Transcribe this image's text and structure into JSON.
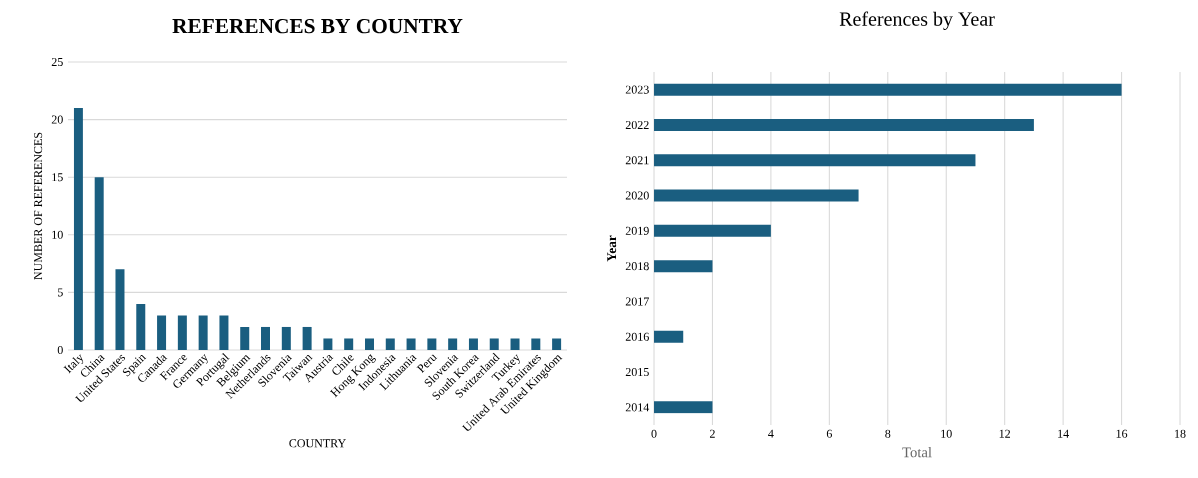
{
  "chart_data": [
    {
      "type": "bar",
      "title": "REFERENCES BY COUNTRY",
      "xlabel": "COUNTRY",
      "ylabel": "NUMBER OF REFERENCES",
      "categories": [
        "Italy",
        "China",
        "United States",
        "Spain",
        "Canada",
        "France",
        "Germany",
        "Portugal",
        "Belgium",
        "Netherlands",
        "Slovenia",
        "Taiwan",
        "Austria",
        "Chile",
        "Hong Kong",
        "Indonesia",
        "Lithuania",
        "Peru",
        "Slovenia",
        "South Korea",
        "Switzerland",
        "Turkey",
        "United Arab Emirates",
        "United Kingdom"
      ],
      "values": [
        21,
        15,
        7,
        4,
        3,
        3,
        3,
        3,
        2,
        2,
        2,
        2,
        1,
        1,
        1,
        1,
        1,
        1,
        1,
        1,
        1,
        1,
        1,
        1
      ],
      "color": "#1a5e80",
      "ylim": [
        0,
        25
      ],
      "yticks": [
        0,
        5,
        10,
        15,
        20,
        25
      ],
      "grid": "y"
    },
    {
      "type": "bar",
      "orientation": "horizontal",
      "title": "References by Year",
      "xlabel": "Total",
      "ylabel": "Year",
      "categories": [
        "2023",
        "2022",
        "2021",
        "2020",
        "2019",
        "2018",
        "2017",
        "2016",
        "2015",
        "2014"
      ],
      "values": [
        16,
        13,
        11,
        7,
        4,
        2,
        null,
        1,
        null,
        2
      ],
      "color": "#1a5e80",
      "xlim": [
        0,
        18
      ],
      "xticks": [
        0,
        2,
        4,
        6,
        8,
        10,
        12,
        14,
        16,
        18
      ],
      "grid": "x"
    }
  ]
}
